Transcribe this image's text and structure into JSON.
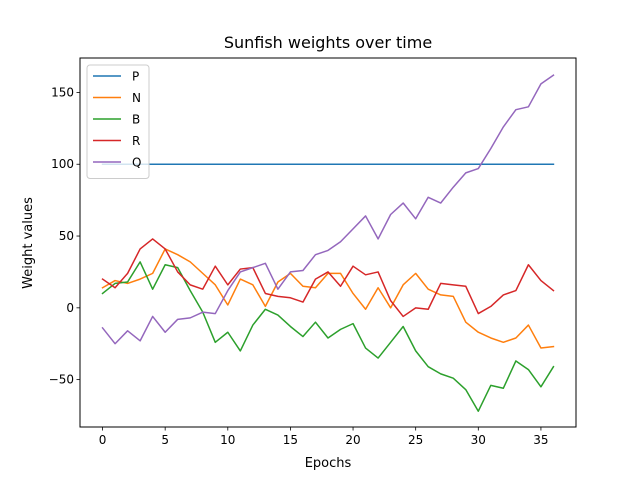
{
  "chart_data": {
    "type": "line",
    "title": "Sunfish weights over time",
    "xlabel": "Epochs",
    "ylabel": "Weight values",
    "xlim": [
      -1.8,
      37.8
    ],
    "ylim": [
      -83,
      174
    ],
    "xticks": [
      0,
      5,
      10,
      15,
      20,
      25,
      30,
      35
    ],
    "yticks": [
      -50,
      0,
      50,
      100,
      150
    ],
    "grid": false,
    "legend_position": "top-left",
    "x": [
      0,
      1,
      2,
      3,
      4,
      5,
      6,
      7,
      8,
      9,
      10,
      11,
      12,
      13,
      14,
      15,
      16,
      17,
      18,
      19,
      20,
      21,
      22,
      23,
      24,
      25,
      26,
      27,
      28,
      29,
      30,
      31,
      32,
      33,
      34,
      35,
      36
    ],
    "series": [
      {
        "name": "P",
        "color": "#1f77b4",
        "values": [
          100,
          100,
          100,
          100,
          100,
          100,
          100,
          100,
          100,
          100,
          100,
          100,
          100,
          100,
          100,
          100,
          100,
          100,
          100,
          100,
          100,
          100,
          100,
          100,
          100,
          100,
          100,
          100,
          100,
          100,
          100,
          100,
          100,
          100,
          100,
          100,
          100
        ]
      },
      {
        "name": "N",
        "color": "#ff7f0e",
        "values": [
          14,
          19,
          17,
          20,
          24,
          41,
          37,
          32,
          24,
          16,
          2,
          20,
          16,
          1,
          18,
          24,
          15,
          14,
          24,
          24,
          10,
          -1,
          14,
          0,
          16,
          24,
          13,
          9,
          8,
          -10,
          -17,
          -21,
          -24,
          -21,
          -12,
          -28,
          -27
        ]
      },
      {
        "name": "B",
        "color": "#2ca02c",
        "values": [
          10,
          17,
          18,
          32,
          13,
          30,
          28,
          12,
          -3,
          -24,
          -17,
          -30,
          -12,
          -1,
          -5,
          -13,
          -20,
          -10,
          -21,
          -15,
          -11,
          -28,
          -35,
          -24,
          -13,
          -30,
          -41,
          -46,
          -49,
          -57,
          -72,
          -54,
          -56,
          -37,
          -43,
          -55,
          -41
        ]
      },
      {
        "name": "R",
        "color": "#d62728",
        "values": [
          20,
          14,
          24,
          41,
          48,
          41,
          25,
          16,
          13,
          29,
          16,
          27,
          28,
          10,
          8,
          7,
          4,
          20,
          25,
          15,
          29,
          23,
          25,
          5,
          -6,
          0,
          -1,
          17,
          16,
          15,
          -4,
          1,
          9,
          12,
          30,
          19,
          12
        ]
      },
      {
        "name": "Q",
        "color": "#9467bd",
        "values": [
          -14,
          -25,
          -16,
          -23,
          -6,
          -17,
          -8,
          -7,
          -3,
          -4,
          12,
          25,
          28,
          31,
          13,
          25,
          26,
          37,
          40,
          46,
          55,
          64,
          48,
          65,
          73,
          62,
          77,
          73,
          84,
          94,
          97,
          111,
          126,
          138,
          140,
          156,
          162
        ]
      }
    ]
  }
}
